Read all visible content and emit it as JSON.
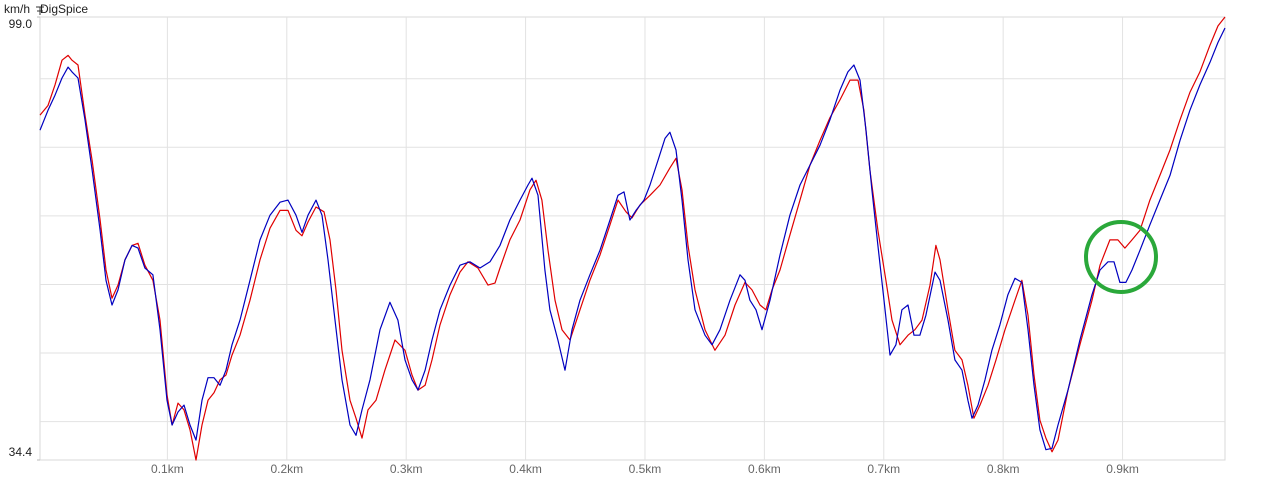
{
  "chart_data": {
    "type": "line",
    "title": "DigSpice",
    "y_label": "km/h",
    "xlim": [
      -0.0067,
      0.9858
    ],
    "ylim": [
      34.4,
      99.0
    ],
    "yticks": [
      34.4,
      {
        "value": 99.0,
        "label": "99.0"
      }
    ],
    "ygrid": [
      40,
      50,
      60,
      70,
      80,
      90
    ],
    "xticks": [
      {
        "value": 0.1,
        "label": "0.1km"
      },
      {
        "value": 0.2,
        "label": "0.2km"
      },
      {
        "value": 0.3,
        "label": "0.3km"
      },
      {
        "value": 0.4,
        "label": "0.4km"
      },
      {
        "value": 0.5,
        "label": "0.5km"
      },
      {
        "value": 0.6,
        "label": "0.6km"
      },
      {
        "value": 0.7,
        "label": "0.7km"
      },
      {
        "value": 0.8,
        "label": "0.8km"
      },
      {
        "value": 0.9,
        "label": "0.9km"
      }
    ],
    "grid": true,
    "series": [
      {
        "color": "#e00000",
        "x": [
          -0.0067,
          0.0,
          0.0059,
          0.0117,
          0.0168,
          0.0201,
          0.0251,
          0.031,
          0.0369,
          0.0436,
          0.0486,
          0.0536,
          0.0586,
          0.0645,
          0.0704,
          0.0754,
          0.0812,
          0.0879,
          0.0938,
          0.0997,
          0.1039,
          0.1089,
          0.1139,
          0.1189,
          0.124,
          0.129,
          0.134,
          0.139,
          0.1441,
          0.1491,
          0.1541,
          0.1608,
          0.1692,
          0.1776,
          0.1859,
          0.1943,
          0.201,
          0.2077,
          0.2127,
          0.2178,
          0.2245,
          0.2312,
          0.2362,
          0.2412,
          0.2462,
          0.2529,
          0.258,
          0.263,
          0.268,
          0.2747,
          0.2822,
          0.2906,
          0.299,
          0.3049,
          0.3099,
          0.3158,
          0.3216,
          0.3283,
          0.3367,
          0.3451,
          0.3518,
          0.3601,
          0.3685,
          0.3744,
          0.3786,
          0.3869,
          0.3953,
          0.4037,
          0.4087,
          0.4137,
          0.4188,
          0.4246,
          0.4305,
          0.4372,
          0.4456,
          0.4539,
          0.4623,
          0.4707,
          0.4774,
          0.4841,
          0.4891,
          0.4958,
          0.5042,
          0.5126,
          0.5209,
          0.526,
          0.531,
          0.536,
          0.5419,
          0.5503,
          0.5586,
          0.567,
          0.5754,
          0.5838,
          0.5896,
          0.5963,
          0.6013,
          0.6064,
          0.6131,
          0.6214,
          0.6298,
          0.6382,
          0.6466,
          0.6549,
          0.6633,
          0.6717,
          0.6784,
          0.6834,
          0.6884,
          0.6951,
          0.7018,
          0.7069,
          0.7136,
          0.7203,
          0.7261,
          0.732,
          0.7387,
          0.7437,
          0.7471,
          0.7538,
          0.7596,
          0.7655,
          0.7705,
          0.7755,
          0.7806,
          0.7873,
          0.794,
          0.8015,
          0.8099,
          0.8157,
          0.8208,
          0.8258,
          0.8308,
          0.8358,
          0.8409,
          0.8459,
          0.8543,
          0.8643,
          0.8744,
          0.8811,
          0.8894,
          0.8961,
          0.902,
          0.9079,
          0.9146,
          0.9229,
          0.9313,
          0.9397,
          0.9481,
          0.9564,
          0.9648,
          0.9732,
          0.9799,
          0.9858
        ],
        "values": [
          84.7,
          86.1,
          89.1,
          92.7,
          93.4,
          92.7,
          92.0,
          84.7,
          78.1,
          69.4,
          62.1,
          58.0,
          59.9,
          63.6,
          65.7,
          66.0,
          62.8,
          60.6,
          54.8,
          43.9,
          39.5,
          42.7,
          41.7,
          38.8,
          34.4,
          39.5,
          43.1,
          44.2,
          46.1,
          46.8,
          49.7,
          52.6,
          57.7,
          63.6,
          68.2,
          70.8,
          70.8,
          67.9,
          67.1,
          69.1,
          71.3,
          70.6,
          66.5,
          59.2,
          50.4,
          43.1,
          40.5,
          37.6,
          41.7,
          43.1,
          47.5,
          51.9,
          50.4,
          46.8,
          44.6,
          45.3,
          49.0,
          54.1,
          58.5,
          61.8,
          63.3,
          62.4,
          59.9,
          60.2,
          62.4,
          66.5,
          69.4,
          73.8,
          75.2,
          72.3,
          65.0,
          57.7,
          53.4,
          51.9,
          56.3,
          60.6,
          64.3,
          68.7,
          72.3,
          70.6,
          69.7,
          71.6,
          73.0,
          74.5,
          77.0,
          78.4,
          73.8,
          65.7,
          59.2,
          53.4,
          50.4,
          52.6,
          57.0,
          60.3,
          59.2,
          57.0,
          56.3,
          59.2,
          62.1,
          67.2,
          72.3,
          77.4,
          81.0,
          84.3,
          86.9,
          89.8,
          89.8,
          85.4,
          76.7,
          67.9,
          60.6,
          54.8,
          51.2,
          52.6,
          53.4,
          54.8,
          59.9,
          65.7,
          63.6,
          56.3,
          50.4,
          49.0,
          45.3,
          40.5,
          42.4,
          45.3,
          49.0,
          53.4,
          57.7,
          60.6,
          55.5,
          46.8,
          40.2,
          37.6,
          35.6,
          37.3,
          44.6,
          51.2,
          57.7,
          62.8,
          66.5,
          66.5,
          65.3,
          66.5,
          67.9,
          72.3,
          75.9,
          79.6,
          84.0,
          88.0,
          91.0,
          94.9,
          97.7,
          99.0
        ]
      },
      {
        "color": "#0000c0",
        "x": [
          -0.0067,
          0.0,
          0.0059,
          0.0117,
          0.0168,
          0.0201,
          0.0251,
          0.031,
          0.0369,
          0.0436,
          0.0486,
          0.0536,
          0.0586,
          0.0645,
          0.0704,
          0.0754,
          0.0812,
          0.0879,
          0.0938,
          0.0997,
          0.1039,
          0.1089,
          0.1139,
          0.1189,
          0.124,
          0.129,
          0.134,
          0.139,
          0.1441,
          0.1491,
          0.1541,
          0.1608,
          0.1692,
          0.1776,
          0.1859,
          0.1943,
          0.201,
          0.2077,
          0.2127,
          0.2178,
          0.2245,
          0.2295,
          0.2345,
          0.2404,
          0.2462,
          0.2529,
          0.258,
          0.263,
          0.2697,
          0.2781,
          0.2864,
          0.2931,
          0.299,
          0.3049,
          0.3099,
          0.3158,
          0.3216,
          0.3283,
          0.3367,
          0.3451,
          0.3534,
          0.3618,
          0.3702,
          0.3786,
          0.3869,
          0.3953,
          0.402,
          0.4054,
          0.4104,
          0.4162,
          0.4204,
          0.4271,
          0.433,
          0.4389,
          0.4456,
          0.4539,
          0.4623,
          0.4707,
          0.4774,
          0.4824,
          0.4874,
          0.4925,
          0.4992,
          0.5042,
          0.5109,
          0.5168,
          0.5209,
          0.526,
          0.531,
          0.536,
          0.5419,
          0.5503,
          0.5561,
          0.5628,
          0.5712,
          0.5796,
          0.5838,
          0.5879,
          0.593,
          0.598,
          0.6047,
          0.6131,
          0.6214,
          0.6298,
          0.6382,
          0.6466,
          0.6549,
          0.6633,
          0.67,
          0.675,
          0.6801,
          0.6851,
          0.6901,
          0.6951,
          0.7002,
          0.7052,
          0.7102,
          0.7152,
          0.7203,
          0.7253,
          0.7303,
          0.7353,
          0.7429,
          0.7471,
          0.7538,
          0.7596,
          0.7655,
          0.7705,
          0.7739,
          0.7789,
          0.7848,
          0.7906,
          0.7973,
          0.804,
          0.8099,
          0.8157,
          0.8208,
          0.8258,
          0.8308,
          0.8358,
          0.8409,
          0.8459,
          0.8543,
          0.8643,
          0.8744,
          0.8811,
          0.8878,
          0.8928,
          0.8978,
          0.9028,
          0.9079,
          0.9146,
          0.9229,
          0.9313,
          0.9397,
          0.9481,
          0.9564,
          0.9648,
          0.9732,
          0.9799,
          0.9858
        ],
        "values": [
          82.5,
          85.4,
          87.6,
          90.1,
          91.7,
          91.0,
          90.1,
          84.0,
          76.7,
          67.9,
          60.6,
          57.0,
          59.2,
          63.6,
          65.7,
          65.3,
          62.4,
          61.4,
          53.4,
          43.1,
          39.5,
          41.4,
          42.4,
          39.5,
          37.3,
          43.1,
          46.4,
          46.4,
          45.3,
          47.5,
          51.2,
          54.8,
          60.6,
          66.5,
          70.1,
          72.0,
          72.3,
          70.1,
          67.6,
          70.1,
          72.3,
          70.1,
          63.6,
          54.8,
          46.1,
          39.5,
          38.0,
          41.7,
          46.1,
          53.4,
          57.4,
          54.8,
          49.0,
          46.1,
          44.6,
          47.5,
          51.9,
          56.3,
          59.9,
          62.8,
          63.3,
          62.4,
          63.3,
          65.7,
          69.4,
          72.3,
          74.5,
          75.5,
          73.0,
          62.1,
          56.3,
          51.9,
          47.5,
          53.4,
          57.7,
          61.4,
          65.0,
          69.4,
          73.0,
          73.5,
          69.4,
          70.8,
          72.3,
          74.5,
          78.1,
          81.3,
          82.2,
          79.6,
          72.3,
          63.6,
          56.3,
          52.6,
          51.2,
          53.4,
          57.7,
          61.4,
          60.6,
          57.7,
          56.3,
          53.4,
          57.7,
          64.3,
          70.1,
          74.5,
          77.4,
          80.3,
          84.0,
          88.3,
          91.0,
          92.0,
          89.8,
          82.5,
          73.8,
          65.7,
          57.7,
          49.7,
          51.2,
          56.3,
          57.0,
          52.6,
          52.6,
          55.5,
          61.8,
          60.6,
          54.8,
          49.0,
          47.5,
          43.1,
          40.5,
          42.4,
          46.1,
          50.4,
          54.1,
          58.5,
          60.9,
          60.3,
          53.4,
          45.3,
          38.8,
          35.9,
          36.1,
          39.5,
          44.6,
          51.9,
          58.5,
          62.1,
          63.3,
          63.3,
          60.3,
          60.3,
          62.1,
          65.0,
          68.7,
          72.3,
          75.9,
          81.0,
          85.4,
          89.1,
          92.4,
          95.3,
          97.4
        ]
      }
    ]
  }
}
